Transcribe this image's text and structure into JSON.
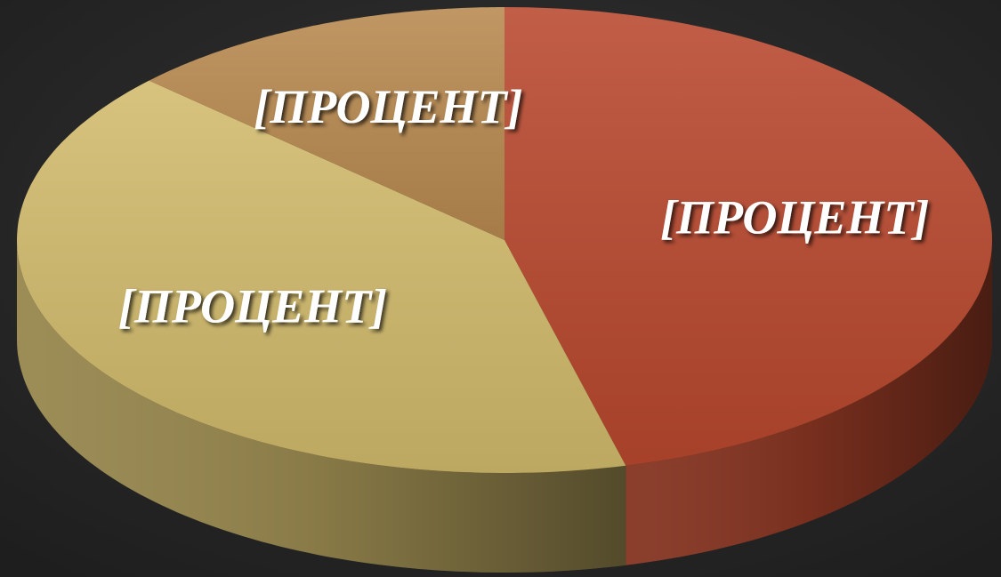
{
  "chart_data": {
    "type": "pie",
    "categories": [
      null,
      null,
      null
    ],
    "values": [
      46,
      41,
      13
    ],
    "value_labels": [
      "[ПРОЦЕНТ]",
      "[ПРОЦЕНТ]",
      "[ПРОЦЕНТ]"
    ],
    "colors": [
      "#b9482e",
      "#d2bb6c",
      "#b8894f"
    ],
    "start_angle": 0,
    "direction": "clockwise",
    "3d": true
  }
}
